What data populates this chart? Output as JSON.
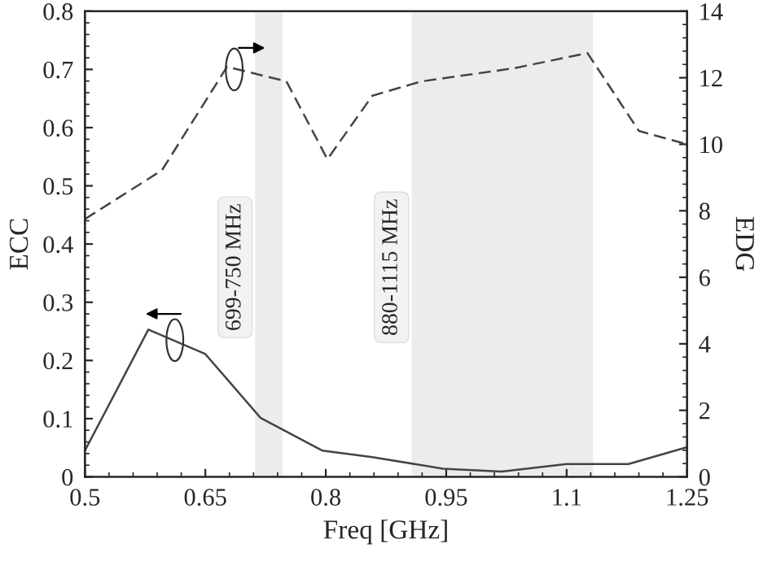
{
  "chart_data": {
    "type": "line",
    "xlabel": "Freq [GHz]",
    "ylabel": "ECC",
    "y2label": "EDG",
    "xlim": [
      0.5,
      1.25
    ],
    "xticks": [
      0.5,
      0.65,
      0.8,
      0.95,
      1.1,
      1.25
    ],
    "ylim": [
      0,
      0.8
    ],
    "yticks": [
      0,
      0.1,
      0.2,
      0.3,
      0.4,
      0.5,
      0.6,
      0.7,
      0.8
    ],
    "y2lim": [
      0,
      14
    ],
    "y2ticks": [
      0,
      2,
      4,
      6,
      8,
      10,
      12,
      14
    ],
    "grid": false,
    "bands": [
      {
        "axis": "x",
        "from": 0.712,
        "to": 0.746,
        "label": "699-750 MHz",
        "color": "#ececec"
      },
      {
        "axis": "x",
        "from": 0.907,
        "to": 1.133,
        "label": "880-1115 MHz",
        "color": "#ececec"
      }
    ],
    "series": [
      {
        "color": "#444444",
        "line_style": "solid",
        "x": [
          0.5,
          0.579,
          0.65,
          0.719,
          0.796,
          0.858,
          0.946,
          1.019,
          1.1,
          1.177,
          1.25
        ],
        "values": [
          0.045,
          0.253,
          0.211,
          0.101,
          0.045,
          0.034,
          0.014,
          0.009,
          0.022,
          0.022,
          0.051
        ]
      },
      {
        "color": "#444444",
        "line_style": "dashed",
        "axis": "y2",
        "x": [
          0.5,
          0.596,
          0.677,
          0.751,
          0.802,
          0.858,
          0.919,
          1.033,
          1.126,
          1.19,
          1.25
        ],
        "values": [
          7.75,
          9.22,
          12.33,
          11.89,
          9.55,
          11.46,
          11.89,
          12.28,
          12.74,
          10.4,
          10.0
        ]
      }
    ]
  }
}
